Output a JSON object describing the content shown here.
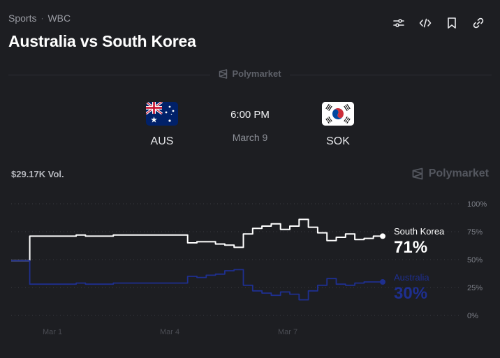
{
  "breadcrumb": {
    "items": [
      "Sports",
      "WBC"
    ],
    "separator": "·"
  },
  "title": "Australia vs South Korea",
  "toolbar": {
    "icons": [
      "sliders-icon",
      "code-icon",
      "bookmark-icon",
      "link-icon"
    ]
  },
  "brand": {
    "name": "Polymarket"
  },
  "match": {
    "time": "6:00 PM",
    "date": "March 9",
    "home": {
      "abbr": "AUS",
      "flag": "australia-flag-icon"
    },
    "away": {
      "abbr": "SOK",
      "flag": "south-korea-flag-icon"
    }
  },
  "volume": "$29.17K Vol.",
  "colors": {
    "background": "#1d1e22",
    "south_korea": "#ffffff",
    "australia": "#1e2f8f",
    "grid": "#3a3c42"
  },
  "chart_data": {
    "type": "line",
    "y_ticks": [
      "100%",
      "75%",
      "50%",
      "25%",
      "0%"
    ],
    "x_ticks": [
      "Mar 1",
      "Mar 4",
      "Mar 7"
    ],
    "ylim": [
      0,
      100
    ],
    "grid": true,
    "series": [
      {
        "name": "South Korea",
        "latest": "71%",
        "color": "#ffffff",
        "values": [
          49,
          49,
          71,
          71,
          71,
          71,
          71,
          72,
          71,
          71,
          71,
          72,
          72,
          72,
          72,
          72,
          72,
          72,
          72,
          65,
          66,
          66,
          64,
          63,
          61,
          73,
          78,
          80,
          82,
          77,
          80,
          86,
          79,
          74,
          67,
          70,
          73,
          68,
          69,
          71,
          71
        ]
      },
      {
        "name": "Australia",
        "latest": "30%",
        "color": "#1e2f8f",
        "values": [
          49,
          49,
          28,
          28,
          28,
          28,
          28,
          29,
          28,
          28,
          28,
          29,
          29,
          29,
          29,
          29,
          29,
          29,
          29,
          35,
          34,
          36,
          37,
          40,
          41,
          27,
          22,
          20,
          18,
          21,
          19,
          14,
          22,
          27,
          33,
          28,
          27,
          29,
          30,
          30,
          30
        ]
      }
    ]
  }
}
